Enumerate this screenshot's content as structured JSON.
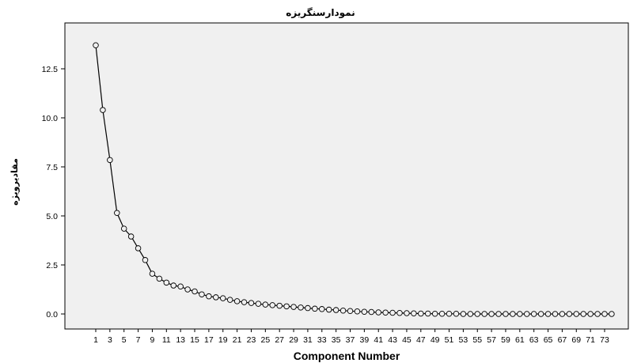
{
  "chart_data": {
    "type": "line",
    "title": "نمودارسنگریزه",
    "xlabel": "Component Number",
    "ylabel": "مقادیرویژه",
    "x": [
      1,
      2,
      3,
      4,
      5,
      6,
      7,
      8,
      9,
      10,
      11,
      12,
      13,
      14,
      15,
      16,
      17,
      18,
      19,
      20,
      21,
      22,
      23,
      24,
      25,
      26,
      27,
      28,
      29,
      30,
      31,
      32,
      33,
      34,
      35,
      36,
      37,
      38,
      39,
      40,
      41,
      42,
      43,
      44,
      45,
      46,
      47,
      48,
      49,
      50,
      51,
      52,
      53,
      54,
      55,
      56,
      57,
      58,
      59,
      60,
      61,
      62,
      63,
      64,
      65,
      66,
      67,
      68,
      69,
      70,
      71,
      72,
      73,
      74
    ],
    "values": [
      13.7,
      10.4,
      7.85,
      5.15,
      4.35,
      3.95,
      3.35,
      2.75,
      2.05,
      1.8,
      1.6,
      1.45,
      1.4,
      1.25,
      1.15,
      1.0,
      0.9,
      0.85,
      0.8,
      0.72,
      0.65,
      0.6,
      0.56,
      0.52,
      0.48,
      0.45,
      0.42,
      0.39,
      0.36,
      0.33,
      0.3,
      0.27,
      0.25,
      0.22,
      0.2,
      0.17,
      0.15,
      0.13,
      0.11,
      0.1,
      0.08,
      0.07,
      0.06,
      0.05,
      0.04,
      0.03,
      0.02,
      0.02,
      0.01,
      0.01,
      0.01,
      0.01,
      0.0,
      0.0,
      0.0,
      0.0,
      0.0,
      0.0,
      0.0,
      0.0,
      0.0,
      0.0,
      0.0,
      0.0,
      0.0,
      0.0,
      0.0,
      0.0,
      0.0,
      0.0,
      0.0,
      0.0,
      0.0,
      0.0
    ],
    "xticks": [
      1,
      3,
      5,
      7,
      9,
      11,
      13,
      15,
      17,
      19,
      21,
      23,
      25,
      27,
      29,
      31,
      33,
      35,
      37,
      39,
      41,
      43,
      45,
      47,
      49,
      51,
      53,
      55,
      57,
      59,
      61,
      63,
      65,
      67,
      69,
      71,
      73
    ],
    "yticks": [
      "0.0",
      "2.5",
      "5.0",
      "7.5",
      "10.0",
      "12.5"
    ],
    "ylim": [
      0,
      15
    ],
    "xlim": [
      0,
      75
    ],
    "grid": false,
    "colors": {
      "plot_bg": "#f0f0f0",
      "line": "#000000",
      "marker_fill": "#f0f0f0",
      "marker_stroke": "#000000"
    }
  }
}
